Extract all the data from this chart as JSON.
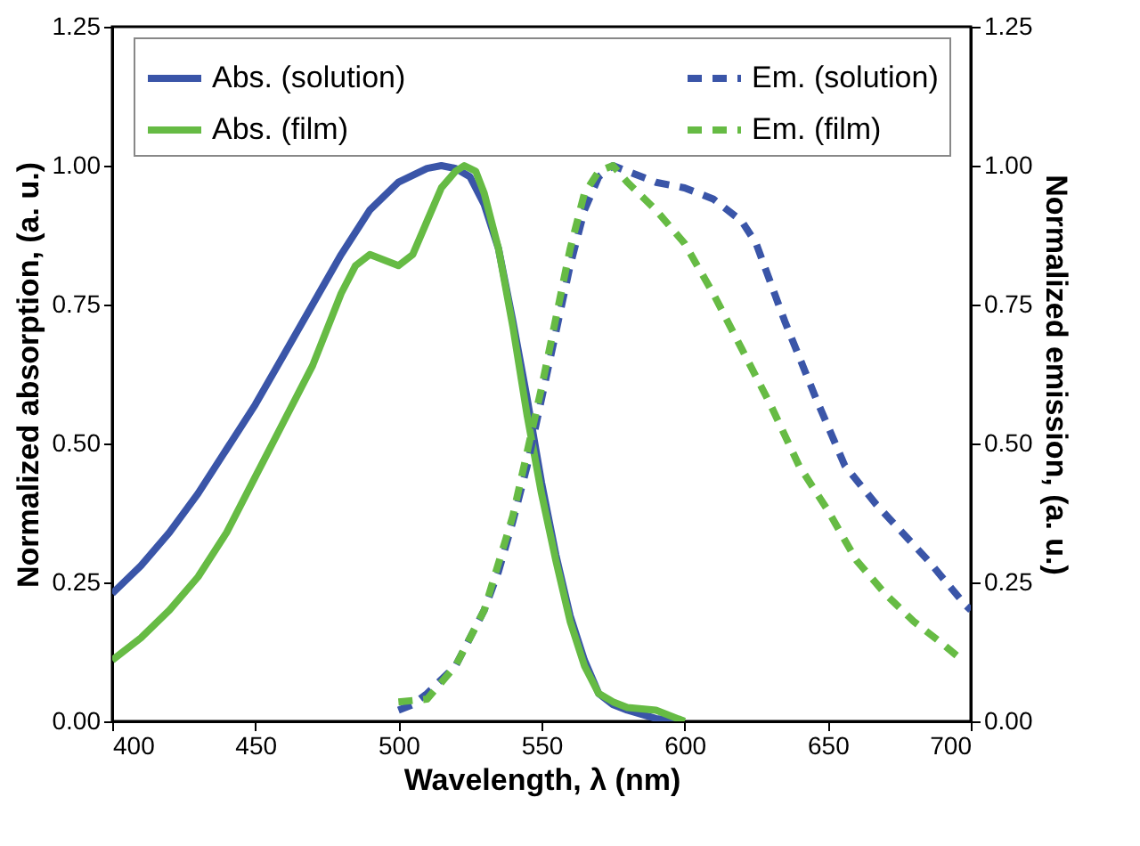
{
  "chart_data": {
    "type": "line",
    "xlabel": "Wavelength, λ (nm)",
    "ylabel": "Normalized absorption, (a. u.)",
    "y2label": "Normalized emission, (a. u.)",
    "xlim": [
      400,
      700
    ],
    "xticks": [
      400,
      450,
      500,
      550,
      600,
      650,
      700
    ],
    "ylim": [
      0,
      1.25
    ],
    "yticks": [
      {
        "value": 0,
        "label": "0.00"
      },
      {
        "value": 0.25,
        "label": "0.25"
      },
      {
        "value": 0.5,
        "label": "0.50"
      },
      {
        "value": 0.75,
        "label": "0.75"
      },
      {
        "value": 1,
        "label": "1.00"
      },
      {
        "value": 1.25,
        "label": "1.25"
      }
    ],
    "y2lim": [
      0,
      1.25
    ],
    "y2ticks": [
      {
        "value": 0,
        "label": "0.00"
      },
      {
        "value": 0.25,
        "label": "0.25"
      },
      {
        "value": 0.5,
        "label": "0.50"
      },
      {
        "value": 0.75,
        "label": "0.75"
      },
      {
        "value": 1,
        "label": "1.00"
      },
      {
        "value": 1.25,
        "label": "1.25"
      }
    ],
    "legend": "top",
    "grid": false,
    "marker": "none",
    "series": [
      {
        "name": "Abs. (solution)",
        "color": "#3a55a8",
        "line_style": "solid",
        "x": [
          400,
          410,
          420,
          430,
          440,
          450,
          460,
          470,
          480,
          490,
          500,
          510,
          515,
          520,
          525,
          530,
          535,
          540,
          545,
          550,
          555,
          560,
          565,
          570,
          575,
          580,
          590,
          600
        ],
        "values": [
          0.23,
          0.28,
          0.34,
          0.41,
          0.49,
          0.57,
          0.66,
          0.75,
          0.84,
          0.92,
          0.97,
          0.995,
          1.0,
          0.995,
          0.98,
          0.93,
          0.85,
          0.72,
          0.58,
          0.43,
          0.3,
          0.19,
          0.11,
          0.05,
          0.03,
          0.02,
          0.005,
          0
        ]
      },
      {
        "name": "Em. (solution)",
        "color": "#3a55a8",
        "line_style": "dashed",
        "axis": "y2",
        "x": [
          500,
          505,
          510,
          520,
          530,
          535,
          540,
          545,
          550,
          555,
          560,
          565,
          570,
          575,
          580,
          590,
          600,
          610,
          620,
          625,
          635,
          646,
          656,
          667,
          685,
          698,
          700
        ],
        "values": [
          0.02,
          0.03,
          0.05,
          0.1,
          0.2,
          0.27,
          0.36,
          0.46,
          0.58,
          0.7,
          0.82,
          0.92,
          0.98,
          1.0,
          0.99,
          0.97,
          0.96,
          0.94,
          0.9,
          0.86,
          0.72,
          0.58,
          0.46,
          0.39,
          0.29,
          0.21,
          0.2
        ]
      },
      {
        "name": "Abs. (film)",
        "color": "#66bb44",
        "line_style": "solid",
        "x": [
          400,
          410,
          420,
          430,
          440,
          450,
          460,
          470,
          480,
          485,
          490,
          495,
          500,
          505,
          510,
          515,
          520,
          523,
          527,
          530,
          535,
          540,
          545,
          550,
          555,
          560,
          565,
          570,
          575,
          580,
          590,
          600
        ],
        "values": [
          0.11,
          0.15,
          0.2,
          0.26,
          0.34,
          0.44,
          0.54,
          0.64,
          0.77,
          0.82,
          0.84,
          0.83,
          0.82,
          0.84,
          0.9,
          0.96,
          0.99,
          1.0,
          0.99,
          0.95,
          0.85,
          0.71,
          0.55,
          0.41,
          0.29,
          0.18,
          0.1,
          0.05,
          0.035,
          0.025,
          0.02,
          0
        ]
      },
      {
        "name": "Em. (film)",
        "color": "#66bb44",
        "line_style": "dashed",
        "axis": "y2",
        "x": [
          500,
          510,
          520,
          530,
          540,
          550,
          560,
          565,
          570,
          575,
          580,
          590,
          600,
          610,
          620,
          630,
          640,
          650,
          660,
          670,
          680,
          690,
          697
        ],
        "values": [
          0.035,
          0.04,
          0.1,
          0.2,
          0.37,
          0.6,
          0.85,
          0.95,
          0.99,
          1.0,
          0.97,
          0.92,
          0.86,
          0.77,
          0.67,
          0.57,
          0.46,
          0.38,
          0.29,
          0.23,
          0.18,
          0.14,
          0.11
        ]
      }
    ]
  }
}
